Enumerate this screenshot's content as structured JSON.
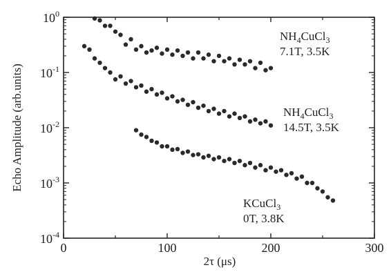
{
  "chart_data": {
    "type": "scatter",
    "title": "",
    "xlabel": "2τ (μs)",
    "ylabel": "Echo Amplitude (arb.units)",
    "xlim": [
      0,
      300
    ],
    "ylim": [
      0.0001,
      1
    ],
    "y_scale": "log",
    "x_ticks": [
      "0",
      "100",
      "200",
      "300"
    ],
    "y_ticks": [
      {
        "base": "10",
        "exp": "0",
        "value": 1
      },
      {
        "base": "10",
        "exp": "-1",
        "value": 0.1
      },
      {
        "base": "10",
        "exp": "-2",
        "value": 0.01
      },
      {
        "base": "10",
        "exp": "-3",
        "value": 0.001
      },
      {
        "base": "10",
        "exp": "-4",
        "value": 0.0001
      }
    ],
    "grid": false,
    "series": [
      {
        "label_main": "NH",
        "label_sub1": "4",
        "label_mid": "CuCl",
        "label_sub2": "3",
        "label_cond": "7.1T, 3.5K",
        "x": [
          30,
          35,
          40,
          45,
          50,
          55,
          60,
          65,
          70,
          75,
          80,
          85,
          90,
          95,
          100,
          105,
          110,
          115,
          120,
          125,
          130,
          135,
          140,
          145,
          150,
          155,
          160,
          165,
          170,
          175,
          180,
          185,
          190,
          195,
          200
        ],
        "y": [
          0.95,
          0.88,
          0.7,
          0.7,
          0.55,
          0.48,
          0.32,
          0.4,
          0.26,
          0.3,
          0.23,
          0.25,
          0.28,
          0.22,
          0.26,
          0.21,
          0.25,
          0.2,
          0.23,
          0.18,
          0.23,
          0.18,
          0.21,
          0.16,
          0.2,
          0.16,
          0.18,
          0.14,
          0.17,
          0.14,
          0.16,
          0.12,
          0.15,
          0.11,
          0.12
        ]
      },
      {
        "label_main": "NH",
        "label_sub1": "4",
        "label_mid": "CuCl",
        "label_sub2": "3",
        "label_cond": "14.5T, 3.5K",
        "x": [
          20,
          25,
          30,
          35,
          40,
          45,
          50,
          55,
          60,
          65,
          70,
          75,
          80,
          85,
          90,
          95,
          100,
          105,
          110,
          115,
          120,
          125,
          130,
          135,
          140,
          145,
          150,
          155,
          160,
          165,
          170,
          175,
          180,
          185,
          190,
          195,
          200
        ],
        "y": [
          0.3,
          0.26,
          0.18,
          0.15,
          0.12,
          0.1,
          0.075,
          0.085,
          0.063,
          0.07,
          0.054,
          0.058,
          0.045,
          0.05,
          0.04,
          0.043,
          0.034,
          0.037,
          0.03,
          0.032,
          0.026,
          0.029,
          0.023,
          0.025,
          0.02,
          0.022,
          0.018,
          0.02,
          0.016,
          0.018,
          0.015,
          0.016,
          0.013,
          0.014,
          0.012,
          0.013,
          0.011
        ]
      },
      {
        "label_main": "KCuCl",
        "label_sub1": "3",
        "label_cond": "0T, 3.8K",
        "x": [
          70,
          75,
          80,
          85,
          90,
          95,
          100,
          105,
          110,
          115,
          120,
          125,
          130,
          135,
          140,
          145,
          150,
          155,
          160,
          165,
          170,
          175,
          180,
          185,
          190,
          195,
          200,
          205,
          210,
          215,
          220,
          225,
          230,
          235,
          240,
          245,
          250,
          255,
          260
        ],
        "y": [
          0.009,
          0.0075,
          0.0068,
          0.0058,
          0.0054,
          0.0046,
          0.0046,
          0.004,
          0.0041,
          0.0035,
          0.0037,
          0.0032,
          0.0033,
          0.0029,
          0.0031,
          0.0027,
          0.0029,
          0.0025,
          0.0027,
          0.0023,
          0.0025,
          0.0021,
          0.0023,
          0.0019,
          0.0021,
          0.0017,
          0.0019,
          0.0016,
          0.0017,
          0.0014,
          0.0015,
          0.0012,
          0.0013,
          0.001,
          0.001,
          0.0008,
          0.0007,
          0.00055,
          0.00048
        ]
      }
    ]
  }
}
